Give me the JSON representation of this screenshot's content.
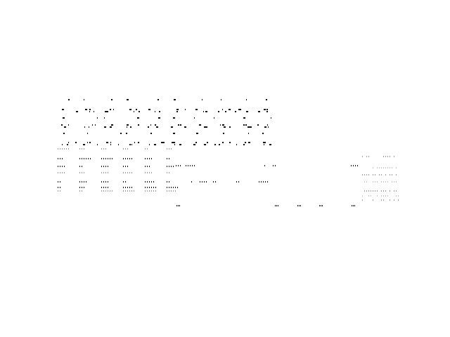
{
  "colors": {
    "background": "#ffffff",
    "ink": "#111111",
    "faint_ink": "#9a9a9a",
    "lightest_ink": "#c4c4c4"
  }
}
